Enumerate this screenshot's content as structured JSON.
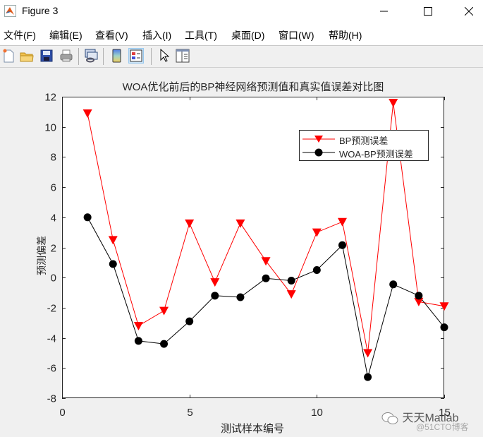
{
  "window": {
    "title": "Figure 3",
    "controls": {
      "minimize": "—",
      "maximize": "☐",
      "close": "✕"
    }
  },
  "menu": {
    "items": [
      {
        "label": "文件(F)"
      },
      {
        "label": "编辑(E)"
      },
      {
        "label": "查看(V)"
      },
      {
        "label": "插入(I)"
      },
      {
        "label": "工具(T)"
      },
      {
        "label": "桌面(D)"
      },
      {
        "label": "窗口(W)"
      },
      {
        "label": "帮助(H)"
      }
    ]
  },
  "toolbar": {
    "buttons": [
      {
        "icon": "new-figure-icon"
      },
      {
        "icon": "open-file-icon"
      },
      {
        "icon": "save-icon"
      },
      {
        "icon": "print-icon"
      },
      {
        "icon": "link-plot-icon"
      },
      {
        "icon": "colorbar-icon"
      },
      {
        "icon": "legend-icon",
        "active": true
      },
      {
        "icon": "pointer-icon"
      },
      {
        "icon": "property-inspector-icon"
      }
    ]
  },
  "chart_data": {
    "type": "line",
    "title": "WOA优化前后的BP神经网络预测值和真实值误差对比图",
    "xlabel": "测试样本编号",
    "ylabel": "预测偏差",
    "xlim": [
      0,
      15
    ],
    "ylim": [
      -8,
      12
    ],
    "xticks": [
      0,
      5,
      10,
      15
    ],
    "yticks": [
      -8,
      -6,
      -4,
      -2,
      0,
      2,
      4,
      6,
      8,
      10,
      12
    ],
    "grid": false,
    "legend_position": "northeast-inside",
    "x": [
      1,
      2,
      3,
      4,
      5,
      6,
      7,
      8,
      9,
      10,
      11,
      12,
      13,
      14,
      15
    ],
    "series": [
      {
        "name": "BP预测误差",
        "color": "#ff0000",
        "marker": "triangle-down",
        "values": [
          10.9,
          2.5,
          -3.2,
          -2.2,
          3.6,
          -0.3,
          3.6,
          1.1,
          -1.1,
          3.0,
          3.7,
          -5.0,
          11.6,
          -1.6,
          -1.9
        ]
      },
      {
        "name": "WOA-BP预测误差",
        "color": "#000000",
        "marker": "circle",
        "values": [
          4.0,
          0.9,
          -4.2,
          -4.4,
          -2.9,
          -1.2,
          -1.3,
          -0.05,
          -0.2,
          0.5,
          2.15,
          -6.6,
          -0.45,
          -1.2,
          -3.3
        ]
      }
    ]
  },
  "watermark": {
    "main": "天天Matlab",
    "sub": "@51CTO博客"
  }
}
